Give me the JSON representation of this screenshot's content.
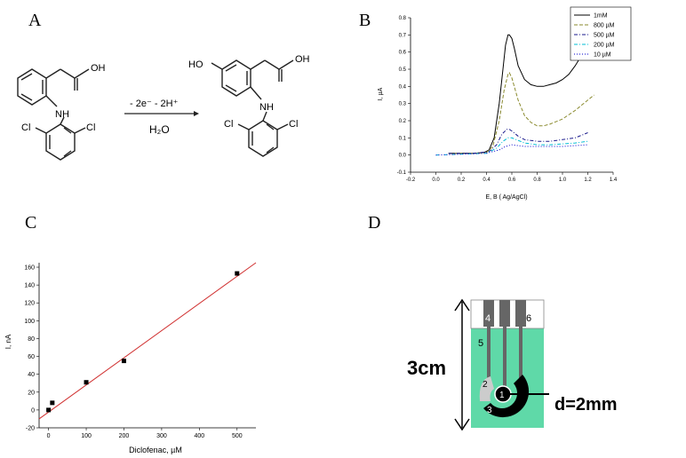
{
  "panels": {
    "a": "A",
    "b": "B",
    "c": "C",
    "d": "D"
  },
  "scheme": {
    "reactant_atoms": {
      "oh": "OH",
      "nh": "NH",
      "cl1": "Cl",
      "cl2": "Cl"
    },
    "product_atoms": {
      "ho": "HO",
      "oh": "OH",
      "nh": "NH",
      "cl1": "Cl",
      "cl2": "Cl"
    },
    "arrow_top": "- 2e⁻   - 2H⁺",
    "arrow_bottom": "H₂O"
  },
  "chart_data": [
    {
      "type": "line",
      "panel": "B",
      "xlabel": "E, B  ( Ag/AgCl)",
      "ylabel": "I, µA",
      "xlim": [
        -0.2,
        1.4
      ],
      "ylim": [
        -0.1,
        0.8
      ],
      "xticks": [
        "-0.2",
        "0.0",
        "0.2",
        "0.4",
        "0.6",
        "0.8",
        "1.0",
        "1.2",
        "1.4"
      ],
      "yticks": [
        "-0.1",
        "0.0",
        "0.1",
        "0.2",
        "0.3",
        "0.4",
        "0.5",
        "0.6",
        "0.7",
        "0.8"
      ],
      "legend_position": "top-right",
      "series": [
        {
          "name": "1mM",
          "color": "#000000",
          "dash": "solid",
          "x": [
            0.1,
            0.2,
            0.3,
            0.38,
            0.42,
            0.46,
            0.5,
            0.53,
            0.55,
            0.57,
            0.58,
            0.6,
            0.62,
            0.65,
            0.7,
            0.75,
            0.8,
            0.85,
            0.9,
            0.95,
            1.0,
            1.05,
            1.1,
            1.15,
            1.2
          ],
          "y": [
            0.01,
            0.01,
            0.01,
            0.015,
            0.03,
            0.1,
            0.3,
            0.5,
            0.64,
            0.7,
            0.7,
            0.68,
            0.62,
            0.52,
            0.44,
            0.41,
            0.4,
            0.4,
            0.41,
            0.42,
            0.44,
            0.47,
            0.52,
            0.58,
            0.64
          ]
        },
        {
          "name": "800 µM",
          "color": "#8a8a2e",
          "dash": "dash",
          "x": [
            0.1,
            0.3,
            0.4,
            0.45,
            0.5,
            0.54,
            0.57,
            0.58,
            0.6,
            0.65,
            0.7,
            0.75,
            0.8,
            0.85,
            0.9,
            1.0,
            1.1,
            1.2,
            1.25
          ],
          "y": [
            0.01,
            0.01,
            0.015,
            0.05,
            0.2,
            0.38,
            0.47,
            0.48,
            0.45,
            0.32,
            0.23,
            0.19,
            0.17,
            0.17,
            0.18,
            0.21,
            0.26,
            0.32,
            0.35
          ]
        },
        {
          "name": "500 µM",
          "color": "#1a1a8c",
          "dash": "dashdot",
          "x": [
            0.1,
            0.3,
            0.42,
            0.48,
            0.52,
            0.56,
            0.58,
            0.6,
            0.65,
            0.7,
            0.8,
            0.9,
            1.0,
            1.1,
            1.2
          ],
          "y": [
            0.01,
            0.01,
            0.02,
            0.06,
            0.12,
            0.15,
            0.15,
            0.14,
            0.11,
            0.09,
            0.08,
            0.08,
            0.09,
            0.1,
            0.13
          ]
        },
        {
          "name": "200 µM",
          "color": "#00bcd4",
          "dash": "dashdot",
          "x": [
            0.0,
            0.2,
            0.4,
            0.48,
            0.53,
            0.57,
            0.6,
            0.65,
            0.7,
            0.8,
            0.9,
            1.0,
            1.1,
            1.2
          ],
          "y": [
            0.0,
            0.005,
            0.01,
            0.04,
            0.08,
            0.1,
            0.1,
            0.085,
            0.07,
            0.06,
            0.06,
            0.065,
            0.07,
            0.08
          ]
        },
        {
          "name": "10 µM",
          "color": "#0000cc",
          "dash": "dot",
          "x": [
            0.0,
            0.2,
            0.4,
            0.5,
            0.55,
            0.6,
            0.7,
            0.8,
            1.0,
            1.2
          ],
          "y": [
            0.0,
            0.005,
            0.01,
            0.03,
            0.05,
            0.06,
            0.05,
            0.05,
            0.05,
            0.06
          ]
        }
      ]
    },
    {
      "type": "scatter",
      "panel": "C",
      "xlabel": "Diclofenac,  µM",
      "ylabel": "I, nA",
      "xlim": [
        -25,
        550
      ],
      "ylim": [
        -20,
        165
      ],
      "xticks": [
        "0",
        "100",
        "200",
        "300",
        "400",
        "500"
      ],
      "yticks": [
        "-20",
        "0",
        "20",
        "40",
        "60",
        "80",
        "100",
        "120",
        "140",
        "160"
      ],
      "points": {
        "x": [
          0,
          10,
          100,
          200,
          500
        ],
        "y": [
          0,
          8,
          31,
          55,
          153
        ]
      },
      "fit": {
        "x": [
          -25,
          550
        ],
        "y": [
          -10,
          165
        ],
        "color": "#d03030"
      }
    }
  ],
  "electrode": {
    "height_label": "3cm",
    "diameter_label": "d=2mm",
    "numbers": {
      "n1": "1",
      "n2": "2",
      "n3": "3",
      "n4": "4",
      "n5": "5",
      "n6": "6"
    },
    "colors": {
      "substrate": "#5fd9a8",
      "working": "#000000",
      "reference": "#cccccc",
      "connector": "#666666"
    }
  }
}
